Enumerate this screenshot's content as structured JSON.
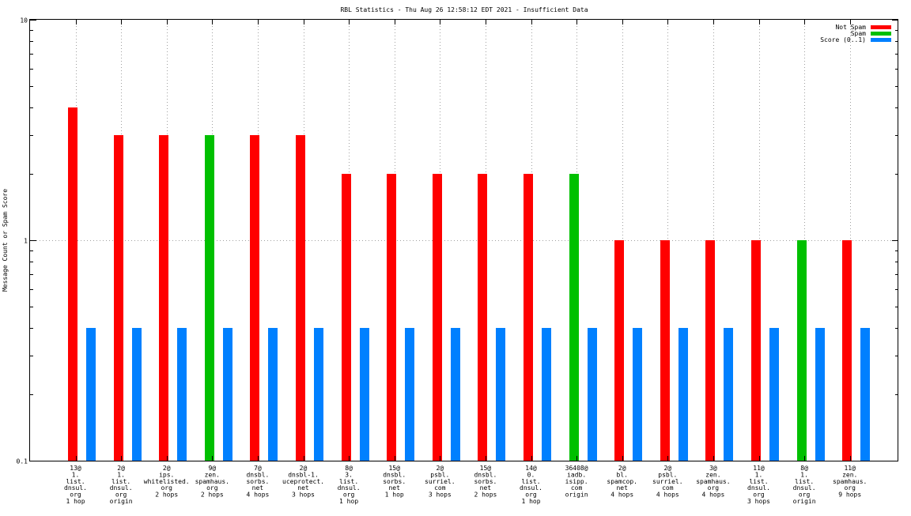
{
  "chart_data": {
    "type": "bar",
    "title": "RBL Statistics - Thu Aug 26 12:58:12 EDT 2021 - Insufficient Data",
    "xlabel": "",
    "ylabel": "Message Count or Spam Score",
    "yscale": "log",
    "ylim": [
      0.1,
      10
    ],
    "yticks": [
      {
        "value": 0.1,
        "label": "0.1"
      },
      {
        "value": 1,
        "label": "1"
      },
      {
        "value": 10,
        "label": "10"
      }
    ],
    "grid": true,
    "legend_position": "top-right",
    "colors": {
      "Not Spam": "#ff0000",
      "Spam": "#00c000",
      "Score (0..1)": "#0080ff"
    },
    "categories": [
      [
        "13@",
        "1.",
        "list.",
        "dnsul.",
        "org",
        "1 hop"
      ],
      [
        "2@",
        "1.",
        "list.",
        "dnsul.",
        "org",
        "origin"
      ],
      [
        "2@",
        "ips.",
        "whitelisted.",
        "org",
        "2 hops"
      ],
      [
        "9@",
        "zen.",
        "spamhaus.",
        "org",
        "2 hops"
      ],
      [
        "7@",
        "dnsbl.",
        "sorbs.",
        "net",
        "4 hops"
      ],
      [
        "2@",
        "dnsbl-1.",
        "uceprotect.",
        "net",
        "3 hops"
      ],
      [
        "8@",
        "3.",
        "list.",
        "dnsul.",
        "org",
        "1 hop"
      ],
      [
        "15@",
        "dnsbl.",
        "sorbs.",
        "net",
        "1 hop"
      ],
      [
        "2@",
        "psbl.",
        "surriel.",
        "com",
        "3 hops"
      ],
      [
        "15@",
        "dnsbl.",
        "sorbs.",
        "net",
        "2 hops"
      ],
      [
        "14@",
        "0.",
        "list.",
        "dnsul.",
        "org",
        "1 hop"
      ],
      [
        "36408@",
        "iadb.",
        "isipp.",
        "com",
        "origin"
      ],
      [
        "2@",
        "bl.",
        "spamcop.",
        "net",
        "4 hops"
      ],
      [
        "2@",
        "psbl.",
        "surriel.",
        "com",
        "4 hops"
      ],
      [
        "3@",
        "zen.",
        "spamhaus.",
        "org",
        "4 hops"
      ],
      [
        "11@",
        "1.",
        "list.",
        "dnsul.",
        "org",
        "3 hops"
      ],
      [
        "8@",
        "1.",
        "list.",
        "dnsul.",
        "org",
        "origin"
      ],
      [
        "11@",
        "zen.",
        "spamhaus.",
        "org",
        "9 hops"
      ]
    ],
    "series": [
      {
        "name": "Not Spam",
        "values": [
          4,
          3,
          3,
          0,
          3,
          3,
          2,
          2,
          2,
          2,
          2,
          0,
          1,
          1,
          1,
          1,
          0,
          1
        ]
      },
      {
        "name": "Spam",
        "values": [
          0,
          0,
          0,
          3,
          0,
          0,
          0,
          0,
          0,
          0,
          0,
          2,
          0,
          0,
          0,
          0,
          1,
          0
        ]
      },
      {
        "name": "Score (0..1)",
        "values": [
          0.4,
          0.4,
          0.4,
          0.4,
          0.4,
          0.4,
          0.4,
          0.4,
          0.4,
          0.4,
          0.4,
          0.4,
          0.4,
          0.4,
          0.4,
          0.4,
          0.4,
          0.4
        ]
      }
    ]
  }
}
